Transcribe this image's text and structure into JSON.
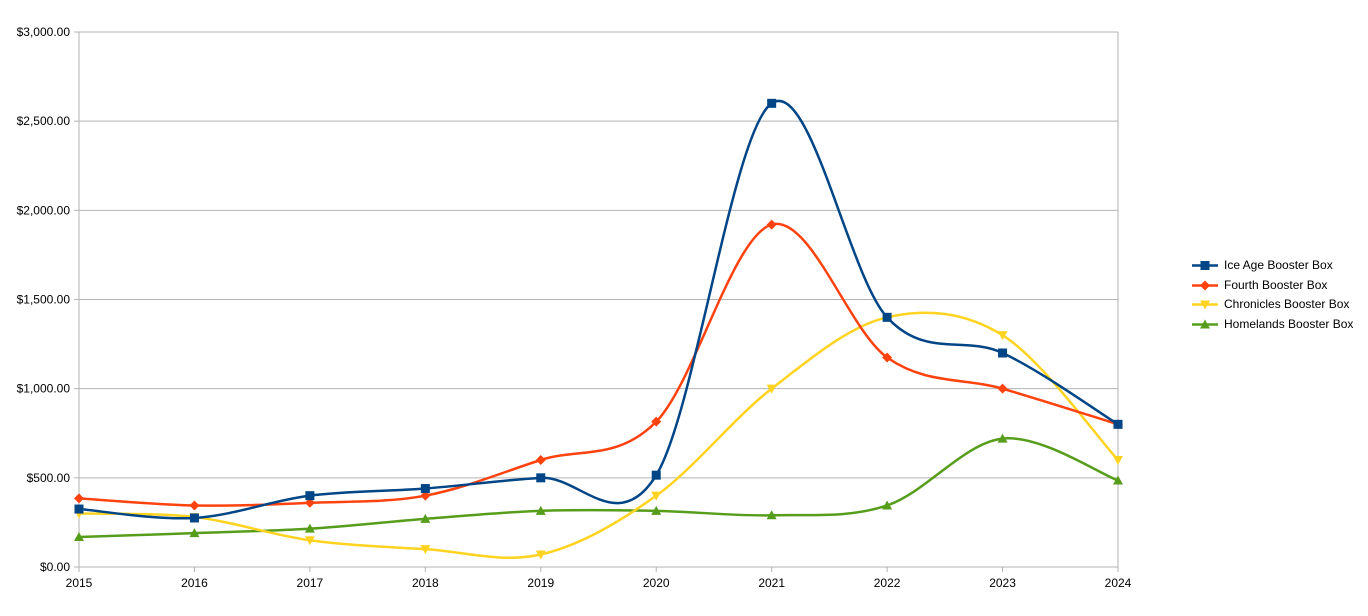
{
  "chart_data": {
    "type": "line",
    "title": "",
    "xlabel": "",
    "ylabel": "",
    "categories": [
      "2015",
      "2016",
      "2017",
      "2018",
      "2019",
      "2020",
      "2021",
      "2022",
      "2023",
      "2024"
    ],
    "ylim": [
      0,
      3000
    ],
    "y_ticks": [
      0,
      500,
      1000,
      1500,
      2000,
      2500,
      3000
    ],
    "y_tick_labels": [
      "$0.00",
      "$500.00",
      "$1,000.00",
      "$1,500.00",
      "$2,000.00",
      "$2,500.00",
      "$3,000.00"
    ],
    "grid": "horizontal",
    "smooth": true,
    "legend_position": "right",
    "series": [
      {
        "name": "Ice Age Booster Box",
        "color": "#004586",
        "marker": "square",
        "values": [
          325,
          275,
          400,
          440,
          500,
          515,
          2600,
          1400,
          1200,
          800
        ]
      },
      {
        "name": "Fourth Booster Box",
        "color": "#ff420e",
        "marker": "diamond",
        "values": [
          385,
          345,
          360,
          400,
          600,
          815,
          1920,
          1175,
          1000,
          800
        ]
      },
      {
        "name": "Chronicles Booster Box",
        "color": "#ffd320",
        "marker": "triangle-down",
        "values": [
          300,
          280,
          150,
          100,
          70,
          400,
          1000,
          1400,
          1300,
          600
        ]
      },
      {
        "name": "Homelands Booster Box",
        "color": "#579d1c",
        "marker": "triangle-up",
        "values": [
          168,
          190,
          215,
          270,
          315,
          315,
          290,
          345,
          720,
          485
        ]
      }
    ]
  }
}
